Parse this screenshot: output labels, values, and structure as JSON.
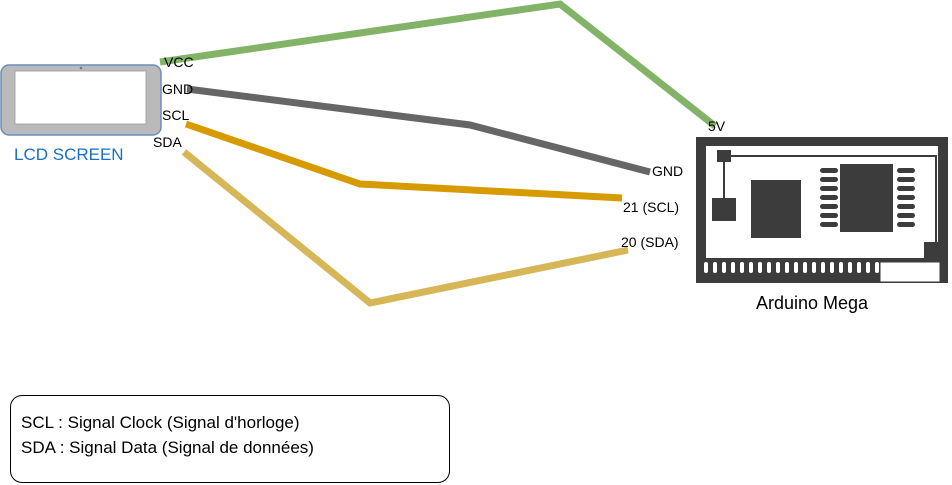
{
  "lcd": {
    "caption": "LCD SCREEN"
  },
  "lcd_pins": {
    "vcc": "VCC",
    "gnd": "GND",
    "scl": "SCL",
    "sda": "SDA"
  },
  "board": {
    "caption": "Arduino Mega"
  },
  "board_pins": {
    "v5": "5V",
    "gnd": "GND",
    "scl": "21 (SCL)",
    "sda": "20 (SDA)"
  },
  "wires": {
    "vcc_color": "#82b366",
    "gnd_color": "#666666",
    "scl_color": "#d79b00",
    "sda_color": "#d6b656"
  },
  "legend": {
    "line1": "SCL : Signal Clock (Signal d'horloge)",
    "line2": "SDA : Signal Data (Signal de données)"
  }
}
